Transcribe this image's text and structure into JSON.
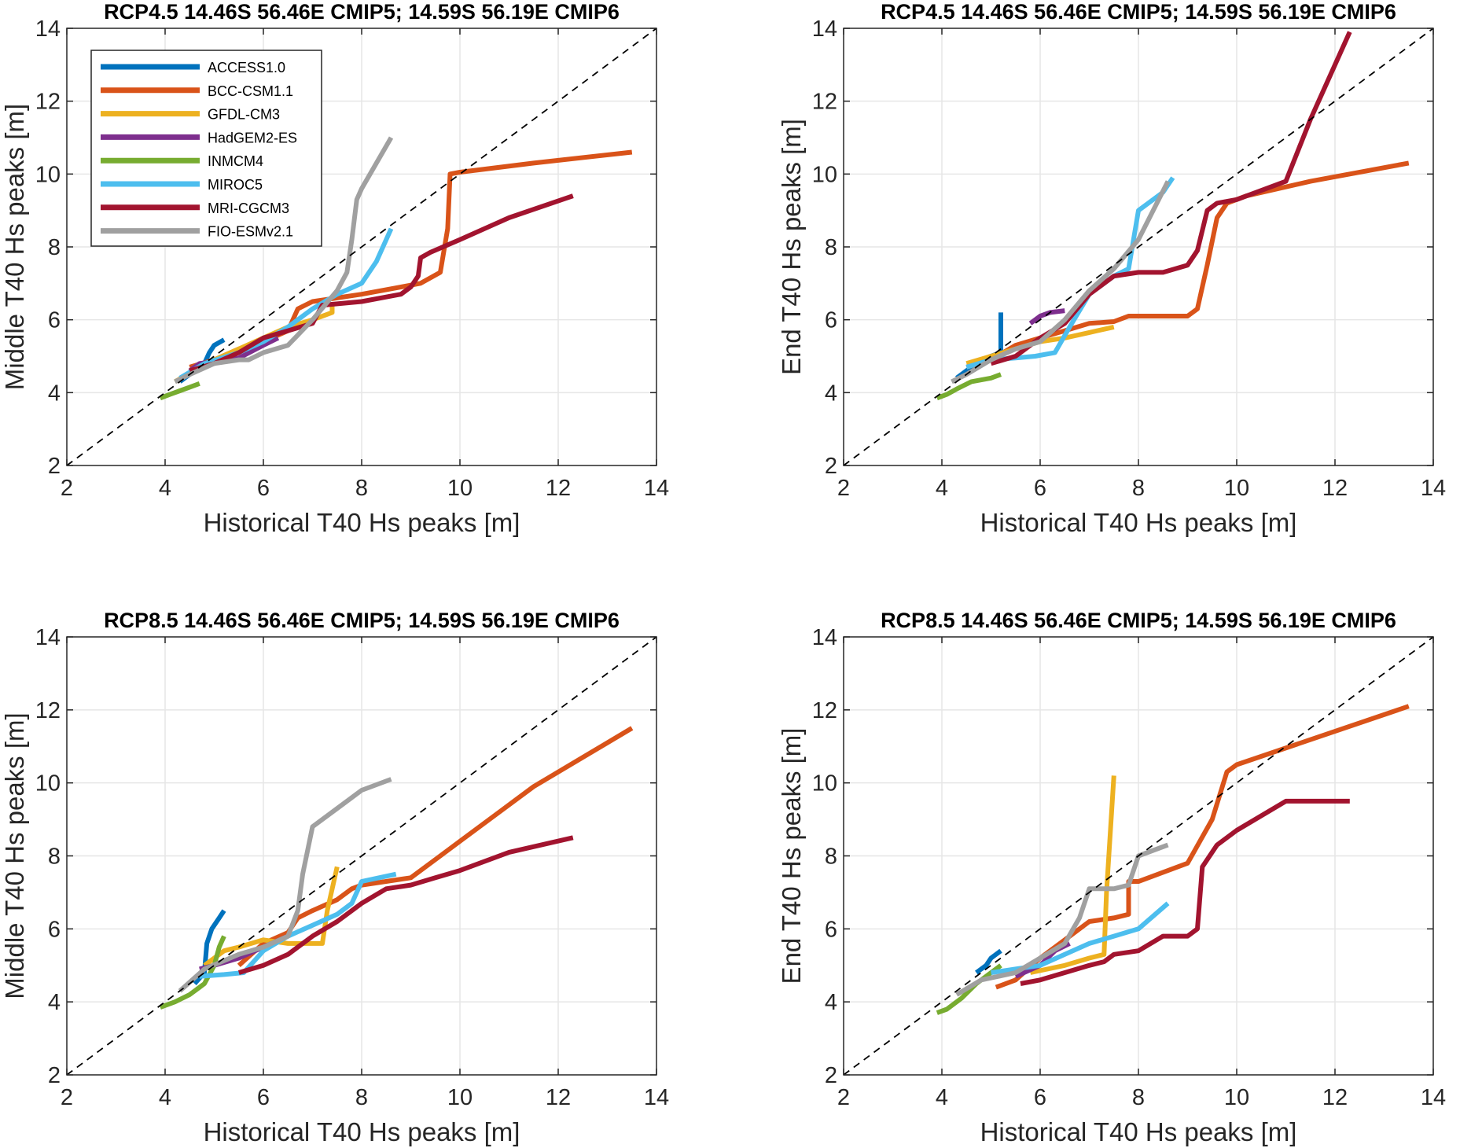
{
  "chart_data": [
    {
      "type": "line",
      "panel": "top-left",
      "title": "RCP4.5  14.46S  56.46E CMIP5;  14.59S  56.19E CMIP6",
      "xlabel": "Historical T40 Hs peaks [m]",
      "ylabel": "Middle T40 Hs peaks [m]",
      "xlim": [
        2,
        14
      ],
      "ylim": [
        2,
        14
      ],
      "xticks": [
        "2",
        "4",
        "6",
        "8",
        "10",
        "12",
        "14"
      ],
      "yticks": [
        "2",
        "4",
        "6",
        "8",
        "10",
        "12",
        "14"
      ],
      "grid": true,
      "reference_line": "1:1 dashed",
      "legend": {
        "location": "top-left",
        "entries": [
          "ACCESS1.0",
          "BCC-CSM1.1",
          "GFDL-CM3",
          "HadGEM2-ES",
          "INMCM4",
          "MIROC5",
          "MRI-CGCM3",
          "FIO-ESMv2.1"
        ]
      },
      "series": [
        {
          "name": "ACCESS1.0",
          "x": [
            4.3,
            4.6,
            4.8,
            4.9,
            5.0,
            5.2
          ],
          "y": [
            4.3,
            4.6,
            4.8,
            5.1,
            5.3,
            5.45
          ]
        },
        {
          "name": "BCC-CSM1.1",
          "x": [
            4.5,
            5.0,
            5.5,
            6.0,
            6.5,
            6.7,
            7.0,
            7.5,
            8.0,
            8.8,
            9.2,
            9.6,
            9.75,
            9.8,
            10.0,
            11.5,
            13.5
          ],
          "y": [
            4.7,
            4.9,
            5.2,
            5.4,
            5.7,
            6.3,
            6.5,
            6.6,
            6.7,
            6.9,
            7.0,
            7.3,
            8.5,
            10.0,
            10.05,
            10.3,
            10.6
          ]
        },
        {
          "name": "GFDL-CM3",
          "x": [
            4.2,
            4.6,
            5.0,
            5.5,
            6.0,
            6.5,
            7.0,
            7.4,
            7.4
          ],
          "y": [
            4.3,
            4.6,
            4.9,
            5.2,
            5.5,
            5.8,
            6.0,
            6.2,
            6.4
          ]
        },
        {
          "name": "HadGEM2-ES",
          "x": [
            4.5,
            4.7,
            5.0,
            5.5,
            6.0,
            6.3
          ],
          "y": [
            4.6,
            4.8,
            4.85,
            4.95,
            5.3,
            5.5
          ]
        },
        {
          "name": "INMCM4",
          "x": [
            3.9,
            4.1,
            4.3,
            4.5,
            4.7
          ],
          "y": [
            3.85,
            3.95,
            4.05,
            4.15,
            4.25
          ]
        },
        {
          "name": "MIROC5",
          "x": [
            4.3,
            4.8,
            5.5,
            6.0,
            6.5,
            7.0,
            7.5,
            8.0,
            8.3,
            8.6
          ],
          "y": [
            4.4,
            4.8,
            5.1,
            5.4,
            5.8,
            6.3,
            6.7,
            7.0,
            7.6,
            8.5
          ]
        },
        {
          "name": "MRI-CGCM3",
          "x": [
            4.5,
            5.0,
            5.5,
            6.0,
            6.5,
            7.0,
            7.2,
            8.0,
            8.8,
            9.0,
            9.15,
            9.2,
            9.4,
            10.0,
            11.0,
            12.3
          ],
          "y": [
            4.6,
            4.8,
            5.1,
            5.5,
            5.7,
            5.9,
            6.4,
            6.5,
            6.7,
            6.9,
            7.2,
            7.7,
            7.85,
            8.2,
            8.8,
            9.4
          ]
        },
        {
          "name": "FIO-ESMv2.1",
          "x": [
            4.2,
            4.5,
            5.0,
            5.5,
            5.7,
            6.0,
            6.5,
            7.0,
            7.5,
            7.7,
            7.8,
            7.9,
            8.0,
            8.6
          ],
          "y": [
            4.3,
            4.5,
            4.8,
            4.9,
            4.9,
            5.1,
            5.3,
            6.0,
            6.8,
            7.3,
            8.2,
            9.3,
            9.6,
            11.0
          ]
        }
      ]
    },
    {
      "type": "line",
      "panel": "top-right",
      "title": "RCP4.5  14.46S  56.46E CMIP5;  14.59S  56.19E CMIP6",
      "xlabel": "Historical T40 Hs peaks [m]",
      "ylabel": "End T40 Hs peaks [m]",
      "xlim": [
        2,
        14
      ],
      "ylim": [
        2,
        14
      ],
      "xticks": [
        "2",
        "4",
        "6",
        "8",
        "10",
        "12",
        "14"
      ],
      "yticks": [
        "2",
        "4",
        "6",
        "8",
        "10",
        "12",
        "14"
      ],
      "grid": true,
      "reference_line": "1:1 dashed",
      "series": [
        {
          "name": "ACCESS1.0",
          "x": [
            4.3,
            4.6,
            4.8,
            5.0,
            5.1,
            5.2,
            5.2
          ],
          "y": [
            4.4,
            4.7,
            4.9,
            5.0,
            5.05,
            5.1,
            6.2
          ]
        },
        {
          "name": "BCC-CSM1.1",
          "x": [
            4.5,
            5.0,
            5.5,
            6.0,
            6.5,
            7.0,
            7.5,
            7.8,
            9.0,
            9.2,
            9.4,
            9.6,
            9.8,
            10.2,
            11.5,
            13.5
          ],
          "y": [
            4.7,
            4.9,
            5.3,
            5.5,
            5.7,
            5.9,
            5.95,
            6.1,
            6.1,
            6.3,
            7.5,
            8.8,
            9.2,
            9.4,
            9.8,
            10.3
          ]
        },
        {
          "name": "GFDL-CM3",
          "x": [
            4.5,
            5.0,
            5.5,
            6.0,
            6.5,
            7.0,
            7.5
          ],
          "y": [
            4.8,
            5.0,
            5.2,
            5.4,
            5.5,
            5.65,
            5.8
          ]
        },
        {
          "name": "HadGEM2-ES",
          "x": [
            5.8,
            6.0,
            6.2,
            6.5
          ],
          "y": [
            5.9,
            6.1,
            6.2,
            6.25
          ]
        },
        {
          "name": "INMCM4",
          "x": [
            3.9,
            4.1,
            4.3,
            4.6,
            5.0,
            5.2
          ],
          "y": [
            3.85,
            3.95,
            4.1,
            4.3,
            4.4,
            4.5
          ]
        },
        {
          "name": "MIROC5",
          "x": [
            4.5,
            5.0,
            5.5,
            5.9,
            6.3,
            6.6,
            7.0,
            7.5,
            7.8,
            8.0,
            8.5,
            8.7
          ],
          "y": [
            4.7,
            4.9,
            4.95,
            5.0,
            5.1,
            5.8,
            6.7,
            7.2,
            7.4,
            9.0,
            9.5,
            9.9
          ]
        },
        {
          "name": "MRI-CGCM3",
          "x": [
            5.0,
            5.5,
            6.0,
            6.5,
            7.0,
            7.5,
            8.0,
            8.5,
            9.0,
            9.2,
            9.4,
            9.6,
            10.0,
            11.0,
            11.5,
            12.3
          ],
          "y": [
            4.8,
            5.0,
            5.5,
            5.9,
            6.7,
            7.2,
            7.3,
            7.3,
            7.5,
            7.9,
            9.0,
            9.2,
            9.3,
            9.8,
            11.5,
            13.9
          ]
        },
        {
          "name": "FIO-ESMv2.1",
          "x": [
            4.2,
            4.5,
            5.0,
            5.5,
            6.0,
            6.5,
            7.0,
            7.5,
            8.0,
            8.6
          ],
          "y": [
            4.3,
            4.5,
            4.9,
            5.2,
            5.4,
            6.0,
            6.8,
            7.4,
            8.2,
            9.8
          ]
        }
      ]
    },
    {
      "type": "line",
      "panel": "bottom-left",
      "title": "RCP8.5  14.46S  56.46E CMIP5;  14.59S  56.19E CMIP6",
      "xlabel": "Historical T40 Hs peaks [m]",
      "ylabel": "Middle T40 Hs peaks [m]",
      "xlim": [
        2,
        14
      ],
      "ylim": [
        2,
        14
      ],
      "xticks": [
        "2",
        "4",
        "6",
        "8",
        "10",
        "12",
        "14"
      ],
      "yticks": [
        "2",
        "4",
        "6",
        "8",
        "10",
        "12",
        "14"
      ],
      "grid": true,
      "reference_line": "1:1 dashed",
      "series": [
        {
          "name": "ACCESS1.0",
          "x": [
            4.6,
            4.8,
            4.85,
            4.95,
            5.1,
            5.2
          ],
          "y": [
            4.5,
            4.8,
            5.6,
            6.0,
            6.3,
            6.5
          ]
        },
        {
          "name": "BCC-CSM1.1",
          "x": [
            5.5,
            6.0,
            6.5,
            6.7,
            7.0,
            7.5,
            7.8,
            8.0,
            9.0,
            9.6,
            10.0,
            11.5,
            13.5
          ],
          "y": [
            5.0,
            5.6,
            5.9,
            6.3,
            6.5,
            6.8,
            7.1,
            7.2,
            7.4,
            8.0,
            8.4,
            9.9,
            11.5
          ]
        },
        {
          "name": "GFDL-CM3",
          "x": [
            4.8,
            5.2,
            5.5,
            6.0,
            6.5,
            7.0,
            7.2,
            7.3,
            7.5
          ],
          "y": [
            5.0,
            5.4,
            5.5,
            5.7,
            5.6,
            5.6,
            5.6,
            6.5,
            7.7
          ]
        },
        {
          "name": "HadGEM2-ES",
          "x": [
            4.7,
            5.0,
            5.5,
            6.0,
            6.5
          ],
          "y": [
            4.9,
            5.0,
            5.2,
            5.5,
            5.8
          ]
        },
        {
          "name": "INMCM4",
          "x": [
            3.9,
            4.2,
            4.5,
            4.8,
            5.0,
            5.1,
            5.2
          ],
          "y": [
            3.85,
            4.0,
            4.2,
            4.5,
            5.0,
            5.5,
            5.8
          ]
        },
        {
          "name": "MIROC5",
          "x": [
            4.7,
            5.2,
            5.6,
            6.0,
            6.5,
            7.0,
            7.5,
            7.8,
            8.0,
            8.7
          ],
          "y": [
            4.7,
            4.75,
            4.8,
            5.4,
            5.8,
            6.1,
            6.4,
            6.7,
            7.3,
            7.5
          ]
        },
        {
          "name": "MRI-CGCM3",
          "x": [
            5.5,
            6.0,
            6.5,
            7.0,
            7.5,
            8.0,
            8.5,
            9.0,
            9.5,
            10.0,
            11.0,
            12.3
          ],
          "y": [
            4.8,
            5.0,
            5.3,
            5.8,
            6.2,
            6.7,
            7.1,
            7.2,
            7.4,
            7.6,
            8.1,
            8.5
          ]
        },
        {
          "name": "FIO-ESMv2.1",
          "x": [
            4.3,
            4.8,
            5.5,
            6.0,
            6.5,
            6.7,
            6.8,
            7.0,
            7.5,
            8.0,
            8.6
          ],
          "y": [
            4.3,
            4.9,
            5.3,
            5.5,
            5.8,
            6.5,
            7.5,
            8.8,
            9.3,
            9.8,
            10.1
          ]
        }
      ]
    },
    {
      "type": "line",
      "panel": "bottom-right",
      "title": "RCP8.5  14.46S  56.46E CMIP5;  14.59S  56.19E CMIP6",
      "xlabel": "Historical T40 Hs peaks [m]",
      "ylabel": "End T40 Hs peaks [m]",
      "xlim": [
        2,
        14
      ],
      "ylim": [
        2,
        14
      ],
      "xticks": [
        "2",
        "4",
        "6",
        "8",
        "10",
        "12",
        "14"
      ],
      "yticks": [
        "2",
        "4",
        "6",
        "8",
        "10",
        "12",
        "14"
      ],
      "grid": true,
      "reference_line": "1:1 dashed",
      "series": [
        {
          "name": "ACCESS1.0",
          "x": [
            4.7,
            4.9,
            5.0,
            5.2
          ],
          "y": [
            4.8,
            5.0,
            5.2,
            5.4
          ]
        },
        {
          "name": "BCC-CSM1.1",
          "x": [
            5.1,
            5.5,
            6.0,
            6.5,
            7.0,
            7.5,
            7.8,
            7.8,
            8.0,
            9.0,
            9.5,
            9.8,
            10.0,
            13.5
          ],
          "y": [
            4.4,
            4.6,
            5.2,
            5.7,
            6.2,
            6.3,
            6.4,
            7.3,
            7.3,
            7.8,
            9.0,
            10.3,
            10.5,
            12.1
          ]
        },
        {
          "name": "GFDL-CM3",
          "x": [
            5.8,
            6.5,
            7.0,
            7.3,
            7.35,
            7.5
          ],
          "y": [
            4.8,
            5.0,
            5.2,
            5.3,
            7.0,
            10.2
          ]
        },
        {
          "name": "HadGEM2-ES",
          "x": [
            5.5,
            6.0,
            6.3,
            6.6
          ],
          "y": [
            4.7,
            5.0,
            5.4,
            5.6
          ]
        },
        {
          "name": "INMCM4",
          "x": [
            3.9,
            4.1,
            4.4,
            4.7,
            5.0,
            5.2
          ],
          "y": [
            3.7,
            3.8,
            4.1,
            4.5,
            4.8,
            5.0
          ]
        },
        {
          "name": "MIROC5",
          "x": [
            5.0,
            5.5,
            6.0,
            6.5,
            7.0,
            7.5,
            8.0,
            8.6
          ],
          "y": [
            4.8,
            4.9,
            5.0,
            5.3,
            5.6,
            5.8,
            6.0,
            6.7
          ]
        },
        {
          "name": "MRI-CGCM3",
          "x": [
            5.6,
            6.0,
            6.5,
            7.0,
            7.3,
            7.5,
            8.0,
            8.5,
            9.0,
            9.2,
            9.3,
            9.6,
            10.0,
            11.0,
            12.3
          ],
          "y": [
            4.5,
            4.6,
            4.8,
            5.0,
            5.1,
            5.3,
            5.4,
            5.8,
            5.8,
            6.0,
            7.7,
            8.3,
            8.7,
            9.5,
            9.5
          ]
        },
        {
          "name": "FIO-ESMv2.1",
          "x": [
            4.3,
            4.8,
            5.5,
            6.0,
            6.5,
            6.8,
            7.0,
            7.5,
            7.8,
            8.0,
            8.6
          ],
          "y": [
            4.2,
            4.6,
            4.8,
            5.2,
            5.6,
            6.3,
            7.1,
            7.1,
            7.2,
            8.0,
            8.3
          ]
        }
      ]
    }
  ],
  "legend_colors": {
    "ACCESS1.0": "#0072BD",
    "BCC-CSM1.1": "#D95319",
    "GFDL-CM3": "#EDB120",
    "HadGEM2-ES": "#7E2F8E",
    "INMCM4": "#77AC30",
    "MIROC5": "#4DBEEE",
    "MRI-CGCM3": "#A2142F",
    "FIO-ESMv2.1": "#A0A0A0"
  }
}
